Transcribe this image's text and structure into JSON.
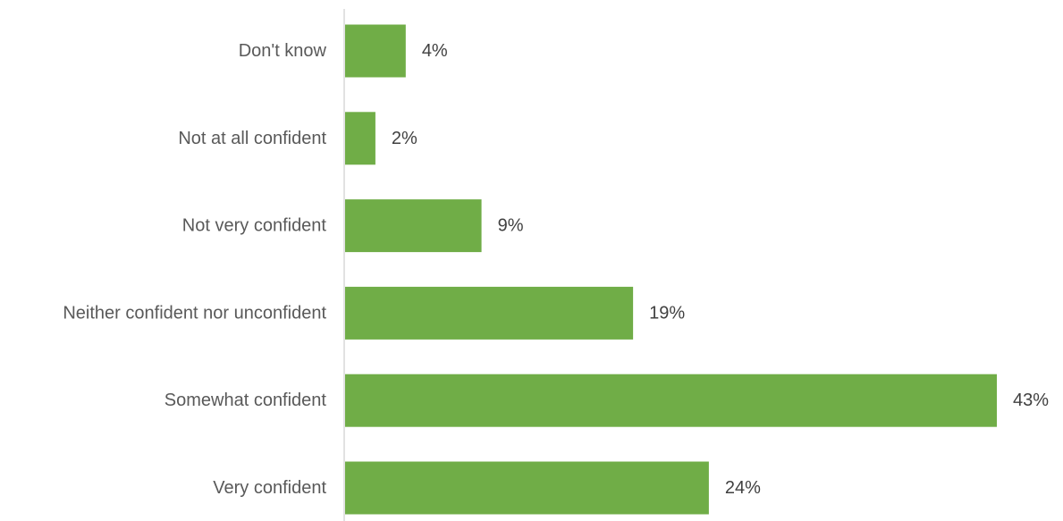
{
  "chart_data": {
    "type": "bar",
    "orientation": "horizontal",
    "categories": [
      "Don't know",
      "Not at all confident",
      "Not very confident",
      "Neither confident nor unconfident",
      "Somewhat confident",
      "Very confident"
    ],
    "values": [
      4,
      2,
      9,
      19,
      43,
      24
    ],
    "value_labels": [
      "4%",
      "2%",
      "9%",
      "19%",
      "43%",
      "24%"
    ],
    "unit": "%",
    "xlim": [
      0,
      43
    ],
    "bar_color": "#70ad47",
    "axis_color": "#d9d9d9",
    "grid": false,
    "legend": "none"
  }
}
